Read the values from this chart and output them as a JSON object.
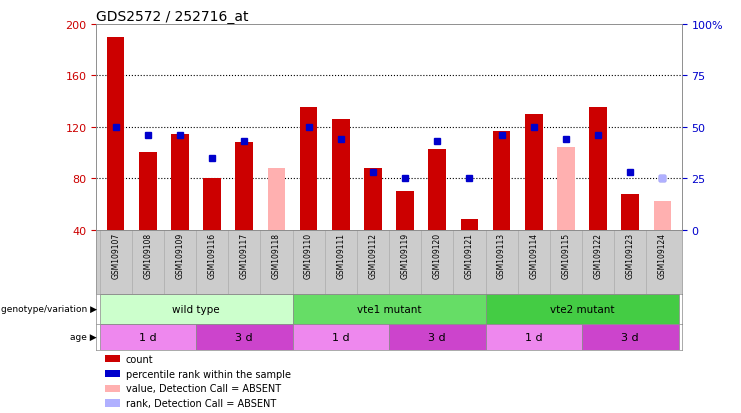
{
  "title": "GDS2572 / 252716_at",
  "samples": [
    "GSM109107",
    "GSM109108",
    "GSM109109",
    "GSM109116",
    "GSM109117",
    "GSM109118",
    "GSM109110",
    "GSM109111",
    "GSM109112",
    "GSM109119",
    "GSM109120",
    "GSM109121",
    "GSM109113",
    "GSM109114",
    "GSM109115",
    "GSM109122",
    "GSM109123",
    "GSM109124"
  ],
  "count_values": [
    190,
    100,
    114,
    80,
    108,
    null,
    135,
    126,
    88,
    70,
    103,
    48,
    117,
    130,
    null,
    135,
    68,
    null
  ],
  "rank_values": [
    50,
    46,
    46,
    35,
    43,
    null,
    50,
    44,
    28,
    25,
    43,
    25,
    46,
    50,
    44,
    46,
    28,
    25
  ],
  "absent_count": [
    null,
    null,
    null,
    null,
    null,
    88,
    null,
    null,
    null,
    null,
    null,
    null,
    null,
    null,
    104,
    null,
    null,
    62
  ],
  "absent_rank": [
    null,
    null,
    null,
    null,
    null,
    null,
    null,
    null,
    null,
    null,
    null,
    null,
    null,
    null,
    null,
    null,
    null,
    25
  ],
  "ylim_left": [
    40,
    200
  ],
  "yticks_left": [
    40,
    80,
    120,
    160,
    200
  ],
  "ylim_right": [
    0,
    100
  ],
  "yticks_right": [
    0,
    25,
    50,
    75,
    100
  ],
  "ylabel_left_color": "#cc0000",
  "ylabel_right_color": "#0000cc",
  "bar_color": "#cc0000",
  "rank_color": "#0000cc",
  "absent_bar_color": "#ffb0b0",
  "absent_rank_color": "#b0b0ff",
  "bg_color": "#ffffff",
  "plot_bg": "#ffffff",
  "genotype_groups": [
    {
      "label": "wild type",
      "start": 0,
      "end": 6,
      "color": "#ccffcc"
    },
    {
      "label": "vte1 mutant",
      "start": 6,
      "end": 12,
      "color": "#66dd66"
    },
    {
      "label": "vte2 mutant",
      "start": 12,
      "end": 18,
      "color": "#44cc44"
    }
  ],
  "age_groups": [
    {
      "label": "1 d",
      "start": 0,
      "end": 3,
      "color": "#ee88ee"
    },
    {
      "label": "3 d",
      "start": 3,
      "end": 6,
      "color": "#cc44cc"
    },
    {
      "label": "1 d",
      "start": 6,
      "end": 9,
      "color": "#ee88ee"
    },
    {
      "label": "3 d",
      "start": 9,
      "end": 12,
      "color": "#cc44cc"
    },
    {
      "label": "1 d",
      "start": 12,
      "end": 15,
      "color": "#ee88ee"
    },
    {
      "label": "3 d",
      "start": 15,
      "end": 18,
      "color": "#cc44cc"
    }
  ],
  "legend_items": [
    {
      "label": "count",
      "color": "#cc0000"
    },
    {
      "label": "percentile rank within the sample",
      "color": "#0000cc"
    },
    {
      "label": "value, Detection Call = ABSENT",
      "color": "#ffb0b0"
    },
    {
      "label": "rank, Detection Call = ABSENT",
      "color": "#b0b0ff"
    }
  ]
}
